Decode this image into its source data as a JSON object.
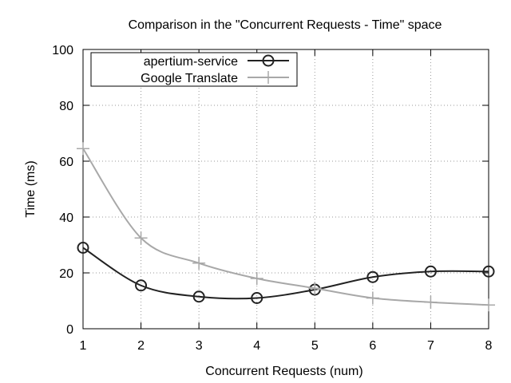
{
  "chart_data": {
    "type": "line",
    "title": "Comparison in the \"Concurrent Requests - Time\" space",
    "xlabel": "Concurrent Requests (num)",
    "ylabel": "Time (ms)",
    "x": [
      1,
      2,
      3,
      4,
      5,
      6,
      7,
      8
    ],
    "xlim": [
      1,
      8
    ],
    "ylim": [
      0,
      100
    ],
    "xticks": [
      1,
      2,
      3,
      4,
      5,
      6,
      7,
      8
    ],
    "yticks": [
      0,
      20,
      40,
      60,
      80,
      100
    ],
    "grid": true,
    "legend_position": "top-left",
    "series": [
      {
        "name": "apertium-service",
        "values": [
          29,
          15.5,
          11.5,
          11,
          14,
          18.5,
          20.5,
          20.5
        ],
        "color": "#222222",
        "marker": "circle"
      },
      {
        "name": "Google Translate",
        "values": [
          64.5,
          32.5,
          23.5,
          18,
          14.5,
          11,
          9.5,
          8.5
        ],
        "color": "#a8a8a8",
        "marker": "plus"
      }
    ]
  }
}
